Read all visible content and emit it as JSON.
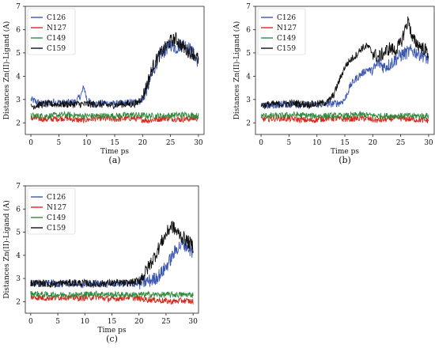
{
  "figure": {
    "panels": [
      "(a)",
      "(b)",
      "(c)"
    ]
  },
  "chart_data": [
    {
      "type": "line",
      "panel_label": "(a)",
      "xlabel": "Time ps",
      "ylabel": "Distances Zn(II)-Ligand (A)",
      "xlim": [
        -1,
        31
      ],
      "ylim": [
        1.5,
        7
      ],
      "xticks": [
        0,
        5,
        10,
        15,
        20,
        25,
        30
      ],
      "yticks": [
        2,
        3,
        4,
        5,
        6,
        7
      ],
      "legend_position": "top-left",
      "grid": false,
      "series": [
        {
          "name": "C126",
          "color": "#3b57b0",
          "x": [
            0,
            2,
            4,
            6,
            8,
            9,
            9.5,
            10,
            10.5,
            11,
            13,
            15,
            17,
            19,
            20,
            21,
            22,
            23,
            24,
            25,
            26,
            27,
            28,
            29,
            30
          ],
          "y": [
            3.0,
            2.8,
            2.9,
            2.85,
            2.9,
            3.2,
            3.55,
            3.0,
            2.9,
            2.8,
            2.85,
            2.8,
            2.85,
            2.9,
            3.0,
            3.6,
            4.3,
            4.9,
            5.1,
            5.4,
            5.2,
            5.4,
            5.3,
            5.0,
            4.6
          ]
        },
        {
          "name": "N127",
          "color": "#d62a1e",
          "x": [
            0,
            3,
            6,
            9,
            12,
            15,
            18,
            21,
            24,
            27,
            30
          ],
          "y": [
            2.2,
            2.15,
            2.2,
            2.1,
            2.2,
            2.15,
            2.2,
            2.1,
            2.2,
            2.15,
            2.2
          ]
        },
        {
          "name": "C149",
          "color": "#2e8b3d",
          "x": [
            0,
            3,
            6,
            9,
            12,
            15,
            18,
            21,
            24,
            27,
            30
          ],
          "y": [
            2.3,
            2.3,
            2.35,
            2.3,
            2.3,
            2.3,
            2.35,
            2.3,
            2.3,
            2.35,
            2.3
          ]
        },
        {
          "name": "C159",
          "color": "#111111",
          "x": [
            0,
            2,
            4,
            6,
            8,
            10,
            12,
            14,
            16,
            18,
            19,
            20,
            21,
            22,
            23,
            24,
            25,
            26,
            27,
            28,
            29,
            30
          ],
          "y": [
            2.7,
            2.8,
            2.8,
            2.8,
            2.8,
            2.8,
            2.8,
            2.75,
            2.8,
            2.8,
            2.85,
            3.1,
            3.8,
            4.5,
            4.9,
            5.2,
            5.5,
            5.6,
            5.3,
            5.1,
            5.0,
            4.7
          ]
        }
      ]
    },
    {
      "type": "line",
      "panel_label": "(b)",
      "xlabel": "Time ps",
      "ylabel": "Distances Zn(II)-Ligand (A)",
      "xlim": [
        -1,
        31
      ],
      "ylim": [
        1.5,
        7
      ],
      "xticks": [
        0,
        5,
        10,
        15,
        20,
        25,
        30
      ],
      "yticks": [
        2,
        3,
        4,
        5,
        6,
        7
      ],
      "legend_position": "top-left",
      "grid": false,
      "series": [
        {
          "name": "C126",
          "color": "#3b57b0",
          "x": [
            0,
            2,
            4,
            6,
            8,
            10,
            12,
            14,
            15,
            16,
            17,
            18,
            19,
            20,
            21,
            22,
            23,
            24,
            25,
            26,
            27,
            28,
            29,
            30
          ],
          "y": [
            2.7,
            2.75,
            2.8,
            2.8,
            2.75,
            2.8,
            2.8,
            2.85,
            3.0,
            3.6,
            3.9,
            4.1,
            4.3,
            4.2,
            4.6,
            4.4,
            4.5,
            4.7,
            4.9,
            5.0,
            5.1,
            5.0,
            4.9,
            4.7
          ]
        },
        {
          "name": "N127",
          "color": "#d62a1e",
          "x": [
            0,
            3,
            6,
            9,
            12,
            15,
            18,
            21,
            24,
            27,
            30
          ],
          "y": [
            2.15,
            2.2,
            2.15,
            2.1,
            2.2,
            2.15,
            2.2,
            2.1,
            2.2,
            2.15,
            2.1
          ]
        },
        {
          "name": "C149",
          "color": "#2e8b3d",
          "x": [
            0,
            3,
            6,
            9,
            12,
            15,
            18,
            21,
            24,
            27,
            30
          ],
          "y": [
            2.3,
            2.3,
            2.35,
            2.3,
            2.3,
            2.3,
            2.35,
            2.3,
            2.3,
            2.3,
            2.3
          ]
        },
        {
          "name": "C159",
          "color": "#111111",
          "x": [
            0,
            2,
            4,
            6,
            8,
            10,
            12,
            13,
            14,
            15,
            16,
            17,
            18,
            19,
            20,
            21,
            22,
            23,
            24,
            25,
            26,
            26.5,
            27,
            28,
            29,
            30
          ],
          "y": [
            2.75,
            2.8,
            2.8,
            2.85,
            2.8,
            2.8,
            2.9,
            3.2,
            3.8,
            4.4,
            4.7,
            4.9,
            5.2,
            5.3,
            5.0,
            4.8,
            5.0,
            5.2,
            5.1,
            5.4,
            6.2,
            6.4,
            5.6,
            5.4,
            5.2,
            5.0
          ]
        }
      ]
    },
    {
      "type": "line",
      "panel_label": "(c)",
      "xlabel": "Time ps",
      "ylabel": "Distances Zn(II)-Ligand (A)",
      "xlim": [
        -1,
        31
      ],
      "ylim": [
        1.5,
        7
      ],
      "xticks": [
        0,
        5,
        10,
        15,
        20,
        25,
        30
      ],
      "yticks": [
        2,
        3,
        4,
        5,
        6,
        7
      ],
      "legend_position": "top-left",
      "grid": false,
      "series": [
        {
          "name": "C126",
          "color": "#3b57b0",
          "x": [
            0,
            2,
            4,
            6,
            8,
            10,
            12,
            14,
            16,
            18,
            20,
            22,
            23,
            24,
            25,
            26,
            27,
            28,
            29,
            30
          ],
          "y": [
            2.8,
            2.75,
            2.8,
            2.75,
            2.8,
            2.75,
            2.8,
            2.75,
            2.8,
            2.75,
            2.8,
            2.9,
            3.0,
            3.2,
            3.5,
            3.9,
            4.3,
            4.5,
            4.4,
            4.0
          ]
        },
        {
          "name": "N127",
          "color": "#d62a1e",
          "x": [
            0,
            3,
            6,
            9,
            12,
            15,
            18,
            21,
            24,
            26,
            28,
            30
          ],
          "y": [
            2.2,
            2.15,
            2.2,
            2.15,
            2.2,
            2.1,
            2.2,
            2.1,
            2.05,
            2.0,
            2.05,
            2.0
          ]
        },
        {
          "name": "C149",
          "color": "#2e8b3d",
          "x": [
            0,
            3,
            6,
            9,
            12,
            15,
            18,
            21,
            24,
            27,
            30
          ],
          "y": [
            2.35,
            2.3,
            2.3,
            2.3,
            2.35,
            2.3,
            2.3,
            2.3,
            2.3,
            2.3,
            2.3
          ]
        },
        {
          "name": "C159",
          "color": "#111111",
          "x": [
            0,
            2,
            4,
            6,
            8,
            10,
            12,
            14,
            16,
            18,
            20,
            21,
            22,
            23,
            24,
            25,
            26,
            27,
            28,
            29,
            30
          ],
          "y": [
            2.8,
            2.8,
            2.75,
            2.8,
            2.8,
            2.8,
            2.75,
            2.8,
            2.8,
            2.8,
            2.9,
            3.2,
            3.6,
            4.0,
            4.5,
            4.9,
            5.3,
            5.0,
            4.8,
            4.6,
            4.4
          ]
        }
      ]
    }
  ]
}
